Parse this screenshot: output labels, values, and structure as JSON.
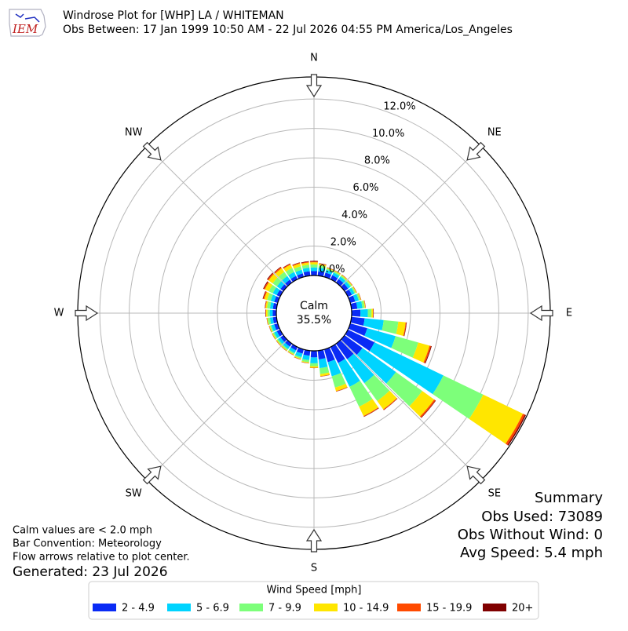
{
  "chart_data": {
    "type": "windrose",
    "logo_text": "IEM",
    "title": "Windrose Plot for [WHP] LA / WHITEMAN",
    "subtitle": "Obs Between: 17 Jan 1999 10:50 AM - 22 Jul 2026 04:55 PM America/Los_Angeles",
    "calm": {
      "label": "Calm",
      "value": 35.5,
      "value_label": "35.5%"
    },
    "directions": [
      0,
      10,
      20,
      30,
      40,
      50,
      60,
      70,
      80,
      90,
      100,
      110,
      120,
      130,
      140,
      150,
      160,
      170,
      180,
      190,
      200,
      210,
      220,
      230,
      240,
      250,
      260,
      270,
      280,
      290,
      300,
      310,
      320,
      330,
      340,
      350
    ],
    "xticks": [
      {
        "value": 0,
        "label": "N"
      },
      {
        "value": 45,
        "label": "NE"
      },
      {
        "value": 90,
        "label": "E"
      },
      {
        "value": 135,
        "label": "SE"
      },
      {
        "value": 180,
        "label": "S"
      },
      {
        "value": 225,
        "label": "SW"
      },
      {
        "value": 270,
        "label": "W"
      },
      {
        "value": 315,
        "label": "NW"
      }
    ],
    "ylim": [
      0,
      13.5
    ],
    "yticks": [
      {
        "value": 0,
        "label": "0.0%"
      },
      {
        "value": 2,
        "label": "2.0%"
      },
      {
        "value": 4,
        "label": "4.0%"
      },
      {
        "value": 6,
        "label": "6.0%"
      },
      {
        "value": 8,
        "label": "8.0%"
      },
      {
        "value": 10,
        "label": "10.0%"
      },
      {
        "value": 12,
        "label": "12.0%"
      }
    ],
    "grid": true,
    "legend_title": "Wind Speed [mph]",
    "series": [
      {
        "name": "2 - 4.9",
        "color": "#0a2bf5",
        "values": [
          0.3,
          0.3,
          0.3,
          0.3,
          0.3,
          0.3,
          0.3,
          0.35,
          0.4,
          0.6,
          0.9,
          1.2,
          2.0,
          1.5,
          1.3,
          1.2,
          0.9,
          0.6,
          0.45,
          0.35,
          0.3,
          0.25,
          0.25,
          0.25,
          0.25,
          0.25,
          0.25,
          0.25,
          0.25,
          0.25,
          0.25,
          0.25,
          0.25,
          0.25,
          0.25,
          0.3
        ]
      },
      {
        "name": "5 - 6.9",
        "color": "#00d4ff",
        "values": [
          0.25,
          0.25,
          0.2,
          0.2,
          0.2,
          0.2,
          0.2,
          0.25,
          0.35,
          0.5,
          1.3,
          2.0,
          5.2,
          2.8,
          2.0,
          1.8,
          1.0,
          0.6,
          0.4,
          0.3,
          0.25,
          0.2,
          0.2,
          0.2,
          0.2,
          0.2,
          0.2,
          0.2,
          0.2,
          0.25,
          0.3,
          0.3,
          0.3,
          0.3,
          0.25,
          0.25
        ]
      },
      {
        "name": "7 - 9.9",
        "color": "#7dff7a",
        "values": [
          0.2,
          0.15,
          0.1,
          0.1,
          0.1,
          0.1,
          0.1,
          0.1,
          0.15,
          0.25,
          1.0,
          1.6,
          3.0,
          2.2,
          1.5,
          1.5,
          0.8,
          0.4,
          0.2,
          0.15,
          0.1,
          0.1,
          0.1,
          0.1,
          0.1,
          0.1,
          0.15,
          0.15,
          0.2,
          0.25,
          0.3,
          0.35,
          0.35,
          0.3,
          0.25,
          0.2
        ]
      },
      {
        "name": "10 - 14.9",
        "color": "#ffe600",
        "values": [
          0.15,
          0.1,
          0.05,
          0.05,
          0.05,
          0.05,
          0.05,
          0.05,
          0.05,
          0.1,
          0.5,
          0.8,
          3.0,
          1.0,
          0.7,
          0.7,
          0.25,
          0.15,
          0.1,
          0.05,
          0.05,
          0.05,
          0.05,
          0.05,
          0.05,
          0.05,
          0.05,
          0.1,
          0.1,
          0.2,
          0.3,
          0.35,
          0.3,
          0.25,
          0.2,
          0.15
        ]
      },
      {
        "name": "15 - 19.9",
        "color": "#ff4a00",
        "values": [
          0.05,
          0.03,
          0.02,
          0.02,
          0.02,
          0.02,
          0.02,
          0.02,
          0.02,
          0.03,
          0.05,
          0.1,
          0.15,
          0.1,
          0.05,
          0.05,
          0.03,
          0.02,
          0.02,
          0.02,
          0.02,
          0.02,
          0.02,
          0.02,
          0.02,
          0.02,
          0.02,
          0.03,
          0.04,
          0.08,
          0.08,
          0.08,
          0.08,
          0.06,
          0.05,
          0.05
        ]
      },
      {
        "name": "20+",
        "color": "#800000",
        "values": [
          0.05,
          0.02,
          0.01,
          0.01,
          0.01,
          0.01,
          0.01,
          0.01,
          0.01,
          0.02,
          0.03,
          0.05,
          0.08,
          0.04,
          0.02,
          0.02,
          0.01,
          0.01,
          0.01,
          0.01,
          0.01,
          0.01,
          0.01,
          0.01,
          0.01,
          0.01,
          0.01,
          0.02,
          0.02,
          0.04,
          0.05,
          0.05,
          0.04,
          0.03,
          0.03,
          0.04
        ]
      }
    ],
    "notes": [
      "Calm values are < 2.0 mph",
      "Bar Convention: Meteorology",
      "Flow arrows relative to plot center."
    ],
    "generated": "Generated: 23 Jul 2026",
    "summary": [
      "Summary",
      "Obs Used: 73089",
      "Obs Without Wind: 0",
      "Avg Speed: 5.4 mph"
    ]
  }
}
